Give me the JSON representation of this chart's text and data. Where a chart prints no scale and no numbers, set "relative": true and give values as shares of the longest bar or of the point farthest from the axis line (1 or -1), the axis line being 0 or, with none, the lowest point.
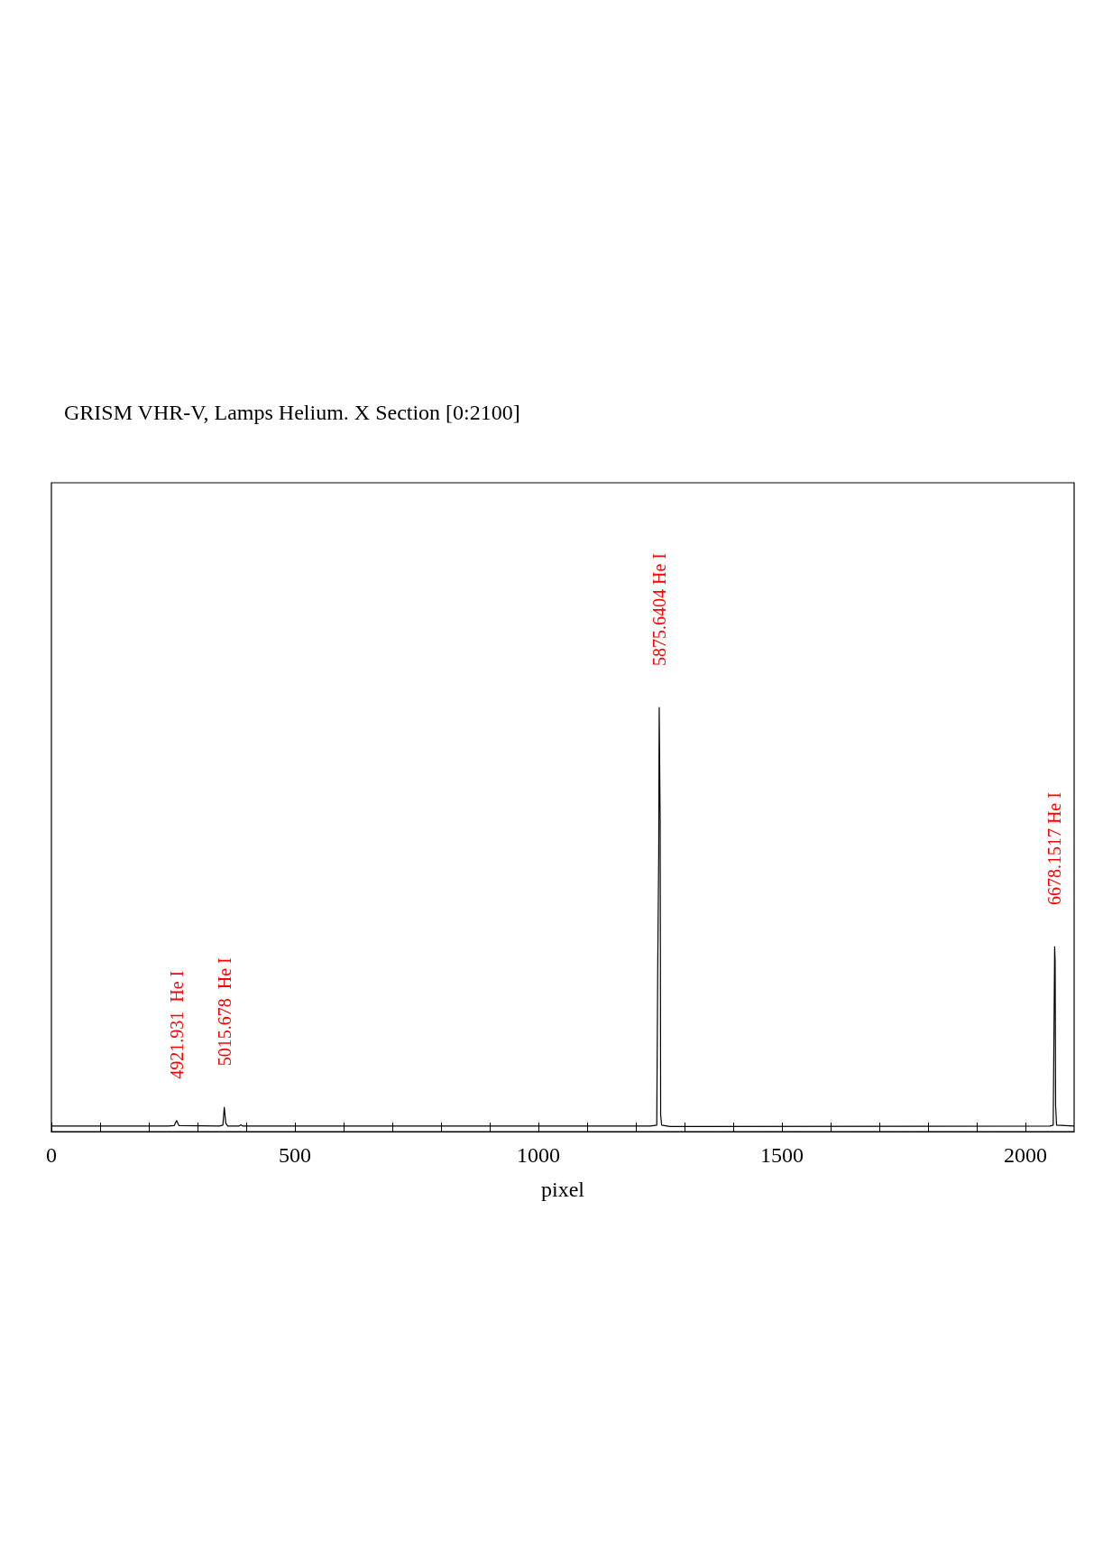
{
  "chart_data": {
    "type": "line",
    "title": "GRISM VHR-V, Lamps Helium. X Section [0:2100]",
    "xlabel": "pixel",
    "relative": true,
    "x": [
      0,
      240,
      252,
      257,
      262,
      345,
      352,
      355,
      358,
      362,
      385,
      389,
      393,
      1230,
      1243,
      1245,
      1247,
      1248,
      1249,
      1250,
      1251,
      1253,
      1270,
      2050,
      2057,
      2059,
      2060,
      2061,
      2062,
      2064,
      2100
    ],
    "series": [
      {
        "color": "#000000",
        "values": [
          0.013,
          0.013,
          0.014,
          0.026,
          0.014,
          0.013,
          0.015,
          0.057,
          0.02,
          0.013,
          0.013,
          0.016,
          0.013,
          0.013,
          0.015,
          0.39,
          0.65,
          1,
          1,
          0.73,
          0.04,
          0.015,
          0.012,
          0.013,
          0.015,
          0.29,
          0.436,
          0.4,
          0.06,
          0.015,
          0.013
        ]
      }
    ],
    "xlim": [
      0,
      2100
    ],
    "xticks": [
      0,
      {
        "value": 100,
        "label": null
      },
      {
        "value": 200,
        "label": null
      },
      {
        "value": 300,
        "label": null
      },
      {
        "value": 400,
        "label": null
      },
      500,
      {
        "value": 600,
        "label": null
      },
      {
        "value": 700,
        "label": null
      },
      {
        "value": 800,
        "label": null
      },
      {
        "value": 900,
        "label": null
      },
      1000,
      {
        "value": 1100,
        "label": null
      },
      {
        "value": 1200,
        "label": null
      },
      {
        "value": 1300,
        "label": null
      },
      {
        "value": 1400,
        "label": null
      },
      1500,
      {
        "value": 1600,
        "label": null
      },
      {
        "value": 1700,
        "label": null
      },
      {
        "value": 1800,
        "label": null
      },
      {
        "value": 1900,
        "label": null
      },
      2000
    ],
    "marker": "none",
    "line_style": "solid",
    "grid": false,
    "annotations": [
      {
        "text": "4921.931  He I",
        "x": 257,
        "y": 0.026
      },
      {
        "text": "5015.678  He I",
        "x": 355,
        "y": 0.057
      },
      {
        "text": "5875.6404 He I",
        "x": 1248,
        "y": 1
      },
      {
        "text": "6678.1517 He I",
        "x": 2060,
        "y": 0.436
      }
    ]
  }
}
